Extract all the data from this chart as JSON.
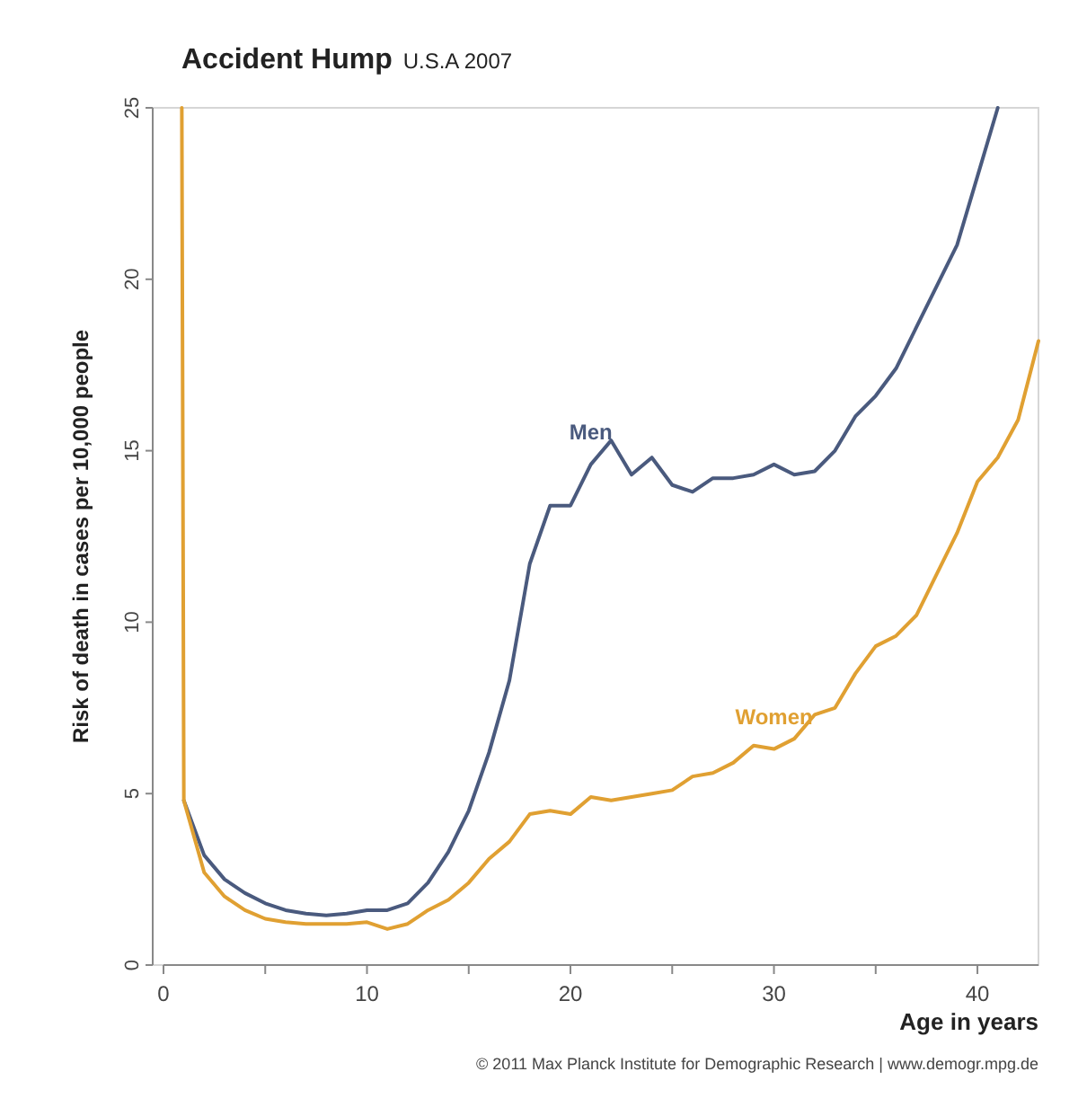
{
  "chart_data": {
    "type": "line",
    "title": "Accident Hump",
    "subtitle": "U.S.A 2007",
    "xlabel": "Age in years",
    "ylabel": "Risk of death in cases per 10,000 people",
    "annotations": [
      "© 2011 Max Planck Institute for Demographic Research | www.demogr.mpg.de"
    ],
    "xlim": [
      0,
      43
    ],
    "ylim": [
      0,
      25
    ],
    "xticks": [
      0,
      {
        "value": 5,
        "label": null
      },
      10,
      {
        "value": 15,
        "label": null
      },
      20,
      {
        "value": 25,
        "label": null
      },
      30,
      {
        "value": 35,
        "label": null
      },
      40
    ],
    "yticks": [
      0,
      5,
      10,
      15,
      20,
      25
    ],
    "grid": false,
    "legend": false,
    "marker": "none",
    "line_style": "solid",
    "series": [
      {
        "name": "Men",
        "color": "#4a5a7e",
        "x": [
          1,
          2,
          3,
          4,
          5,
          6,
          7,
          8,
          9,
          10,
          11,
          12,
          13,
          14,
          15,
          16,
          17,
          18,
          19,
          20,
          21,
          22,
          23,
          24,
          25,
          26,
          27,
          28,
          29,
          30,
          31,
          32,
          33,
          34,
          35,
          36,
          37,
          38,
          39,
          40,
          41
        ],
        "values": [
          4.8,
          3.2,
          2.5,
          2.1,
          1.8,
          1.6,
          1.5,
          1.45,
          1.5,
          1.6,
          1.6,
          1.8,
          2.4,
          3.3,
          4.5,
          6.2,
          8.3,
          11.7,
          13.4,
          13.4,
          14.6,
          15.3,
          14.3,
          14.8,
          14.0,
          13.8,
          14.2,
          14.2,
          14.3,
          14.6,
          14.3,
          14.4,
          15.0,
          16.0,
          16.6,
          17.4,
          18.6,
          19.8,
          21.0,
          23.0,
          25
        ]
      },
      {
        "name": "Women",
        "color": "#e0a032",
        "x": [
          0.9,
          1,
          2,
          3,
          4,
          5,
          6,
          7,
          8,
          9,
          10,
          11,
          12,
          13,
          14,
          15,
          16,
          17,
          18,
          19,
          20,
          21,
          22,
          23,
          24,
          25,
          26,
          27,
          28,
          29,
          30,
          31,
          32,
          33,
          34,
          35,
          36,
          37,
          38,
          39,
          40,
          41,
          42,
          43
        ],
        "values": [
          25,
          4.8,
          2.7,
          2.0,
          1.6,
          1.35,
          1.25,
          1.2,
          1.2,
          1.2,
          1.25,
          1.05,
          1.2,
          1.6,
          1.9,
          2.4,
          3.1,
          3.6,
          4.4,
          4.5,
          4.4,
          4.9,
          4.8,
          4.9,
          5.0,
          5.1,
          5.5,
          5.6,
          5.9,
          6.4,
          6.3,
          6.6,
          7.3,
          7.5,
          8.5,
          9.3,
          9.6,
          10.2,
          11.4,
          12.6,
          14.1,
          14.8,
          15.9,
          18.2
        ]
      }
    ]
  }
}
